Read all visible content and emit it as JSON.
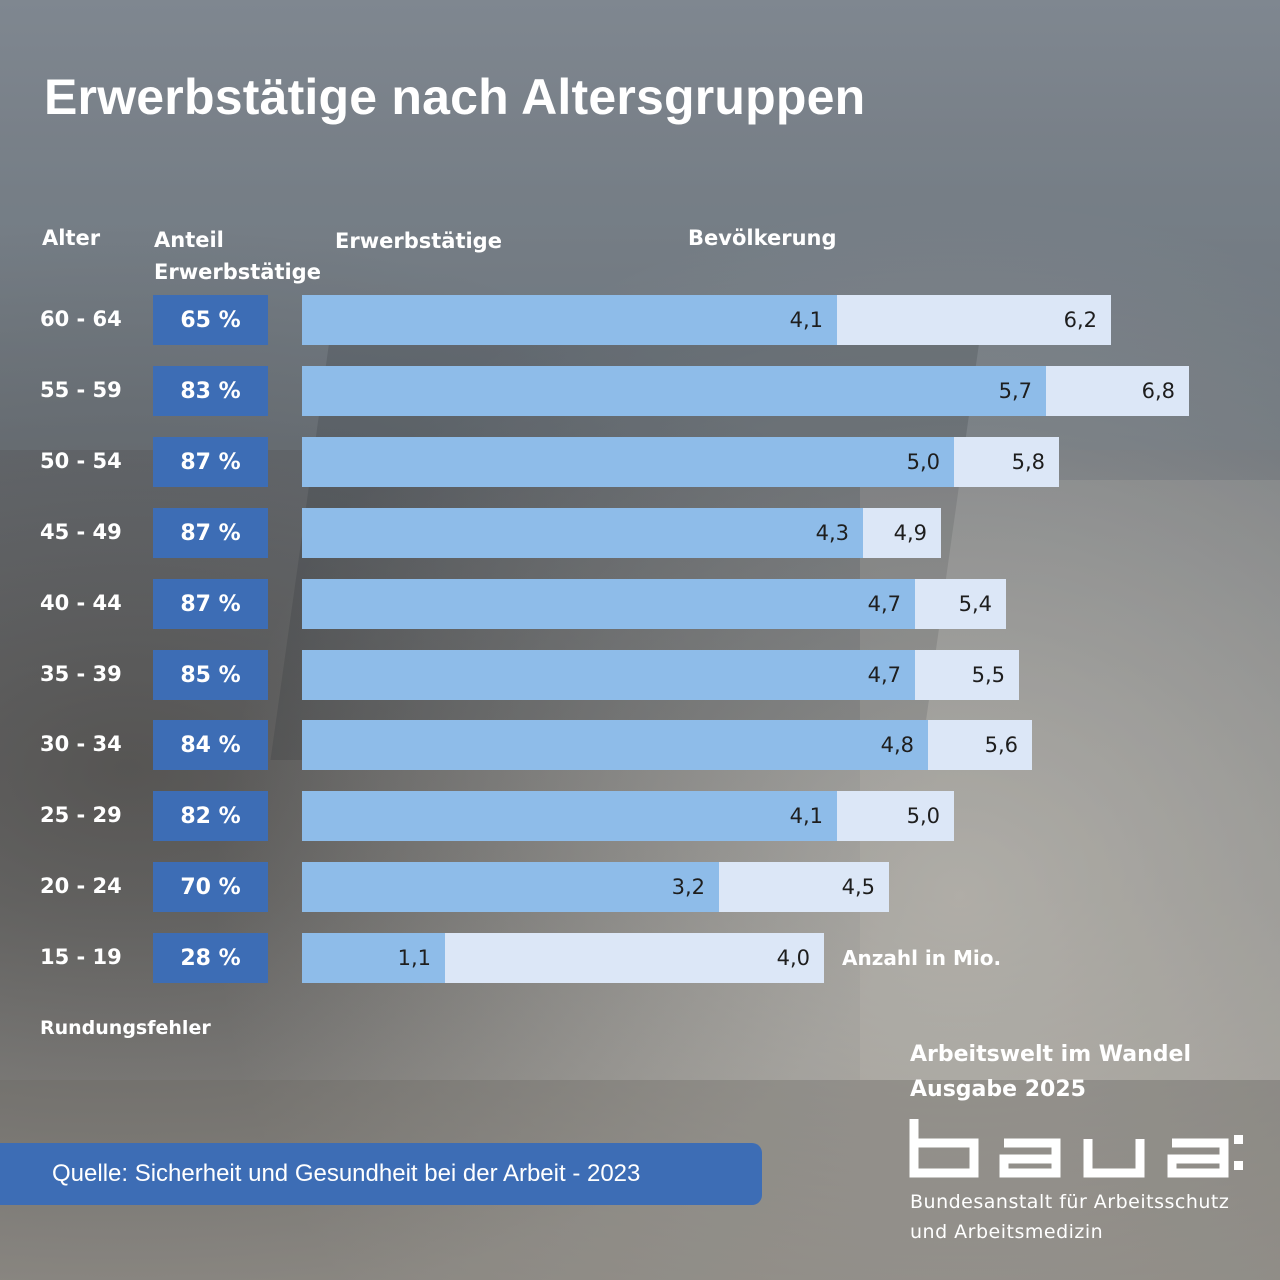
{
  "title": "Erwerbstätige nach Altersgruppen",
  "headers": {
    "age": "Alter",
    "share_line1": "Anteil",
    "share_line2": "Erwerbstätige",
    "employed": "Erwerbstätige",
    "population": "Bevölkerung"
  },
  "chart_data": {
    "type": "bar",
    "orientation": "horizontal",
    "unit_label": "Anzahl in Mio.",
    "categories": [
      "60 - 64",
      "55 - 59",
      "50 - 54",
      "45 - 49",
      "40 - 44",
      "35 - 39",
      "30 - 34",
      "25 - 29",
      "20 - 24",
      "15 - 19"
    ],
    "shares": [
      "65 %",
      "83 %",
      "87 %",
      "87 %",
      "87 %",
      "85 %",
      "84 %",
      "82 %",
      "70 %",
      "28 %"
    ],
    "series": [
      {
        "name": "Erwerbstätige",
        "values": [
          4.1,
          5.7,
          5.0,
          4.3,
          4.7,
          4.7,
          4.8,
          4.1,
          3.2,
          1.1
        ],
        "labels": [
          "4,1",
          "5,7",
          "5,0",
          "4,3",
          "4,7",
          "4,7",
          "4,8",
          "4,1",
          "3,2",
          "1,1"
        ],
        "color": "#8ebce9"
      },
      {
        "name": "Bevölkerung",
        "values": [
          6.2,
          6.8,
          5.8,
          4.9,
          5.4,
          5.5,
          5.6,
          5.0,
          4.5,
          4.0
        ],
        "labels": [
          "6,2",
          "6,8",
          "5,8",
          "4,9",
          "5,4",
          "5,5",
          "5,6",
          "5,0",
          "4,5",
          "4,0"
        ],
        "color": "#dce7f7"
      }
    ],
    "xlim": [
      0,
      6.8
    ]
  },
  "notes": {
    "rounding": "Rundungsfehler",
    "unit": "Anzahl in Mio."
  },
  "source": "Quelle: Sicherheit und Gesundheit bei der Arbeit - 2023",
  "publication": {
    "line1": "Arbeitswelt im Wandel",
    "line2": "Ausgabe 2025"
  },
  "org": {
    "logo_text": "baua:",
    "line1": "Bundesanstalt für Arbeitsschutz",
    "line2": "und Arbeitsmedizin"
  },
  "colors": {
    "accent": "#3d6db5",
    "employed": "#8ebce9",
    "population": "#dce7f7"
  }
}
